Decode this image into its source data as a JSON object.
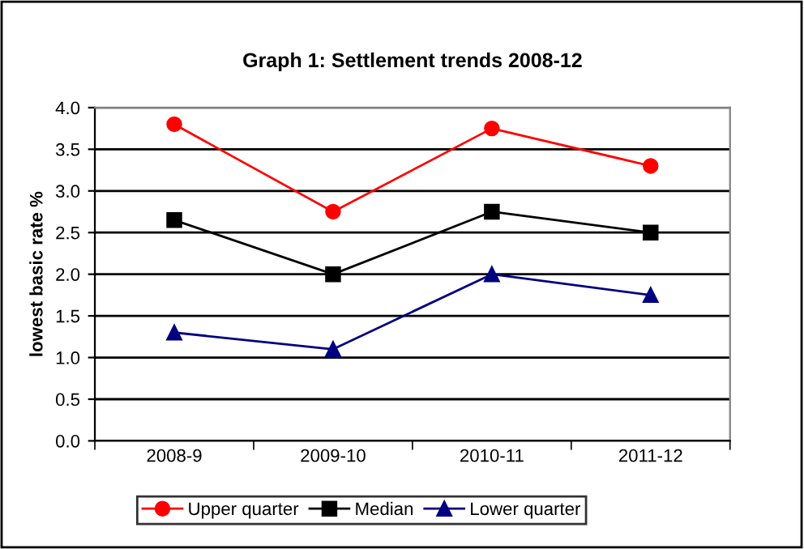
{
  "chart_data": {
    "type": "line",
    "title": "Graph 1: Settlement trends 2008-12",
    "ylabel": "lowest basic rate %",
    "categories": [
      "2008-9",
      "2009-10",
      "2010-11",
      "2011-12"
    ],
    "series": [
      {
        "name": "Upper quarter",
        "color": "#ff0000",
        "marker": "circle",
        "values": [
          3.8,
          2.75,
          3.75,
          3.3
        ]
      },
      {
        "name": "Median",
        "color": "#000000",
        "marker": "square",
        "values": [
          2.65,
          2.0,
          2.75,
          2.5
        ]
      },
      {
        "name": "Lower quarter",
        "color": "#000080",
        "marker": "triangle",
        "values": [
          1.3,
          1.1,
          2.0,
          1.75
        ]
      }
    ],
    "ylim": [
      0,
      4
    ],
    "yticks": [
      {
        "value": 0,
        "label": "0.0"
      },
      0.5,
      {
        "value": 1,
        "label": "1.0"
      },
      1.5,
      {
        "value": 2,
        "label": "2.0"
      },
      2.5,
      {
        "value": 3,
        "label": "3.0"
      },
      3.5,
      {
        "value": 4,
        "label": "4.0"
      }
    ],
    "grid": "y",
    "legend": "bottom",
    "line_style": "solid"
  }
}
